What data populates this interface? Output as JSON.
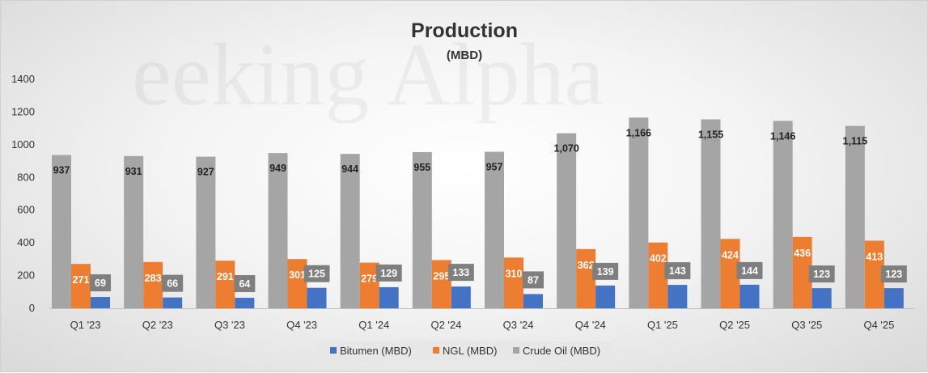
{
  "watermark": "eeking Alpha",
  "colors": {
    "crude": "#a5a5a5",
    "ngl": "#ed7d31",
    "bitumen": "#4472c4",
    "crude_label_text": "#222222",
    "ngl_label_text": "#ffffff",
    "bitumen_label_box": "#7f7f7f",
    "bitumen_label_text": "#ffffff"
  },
  "chart_data": {
    "type": "bar",
    "title": "Production",
    "subtitle": "(MBD)",
    "xlabel": "",
    "ylabel": "",
    "ylim": [
      0,
      1400
    ],
    "yticks": [
      0,
      200,
      400,
      600,
      800,
      1000,
      1200,
      1400
    ],
    "grid": false,
    "legend_position": "bottom",
    "categories": [
      "Q1 '23",
      "Q2 '23",
      "Q3 '23",
      "Q4 '23",
      "Q1 '24",
      "Q2 '24",
      "Q3 '24",
      "Q4 '24",
      "Q1 '25",
      "Q2 '25",
      "Q3 '25",
      "Q4 '25"
    ],
    "series": [
      {
        "name": "Bitumen (MBD)",
        "key": "bitumen",
        "values": [
          69,
          66,
          64,
          125,
          129,
          133,
          87,
          139,
          143,
          144,
          123,
          123
        ],
        "labels": [
          "69",
          "66",
          "64",
          "125",
          "129",
          "133",
          "87",
          "139",
          "143",
          "144",
          "123",
          "123"
        ]
      },
      {
        "name": "NGL (MBD)",
        "key": "ngl",
        "values": [
          271,
          283,
          291,
          301,
          279,
          295,
          310,
          362,
          402,
          424,
          436,
          413
        ],
        "labels": [
          "271",
          "283",
          "291",
          "301",
          "279",
          "295",
          "310",
          "362",
          "402",
          "424",
          "436",
          "413"
        ]
      },
      {
        "name": "Crude Oil (MBD)",
        "key": "crude",
        "values": [
          937,
          931,
          927,
          949,
          944,
          955,
          957,
          1070,
          1166,
          1155,
          1146,
          1115
        ],
        "labels": [
          "937",
          "931",
          "927",
          "949",
          "944",
          "955",
          "957",
          "1,070",
          "1,166",
          "1,155",
          "1,146",
          "1,115"
        ]
      }
    ]
  }
}
